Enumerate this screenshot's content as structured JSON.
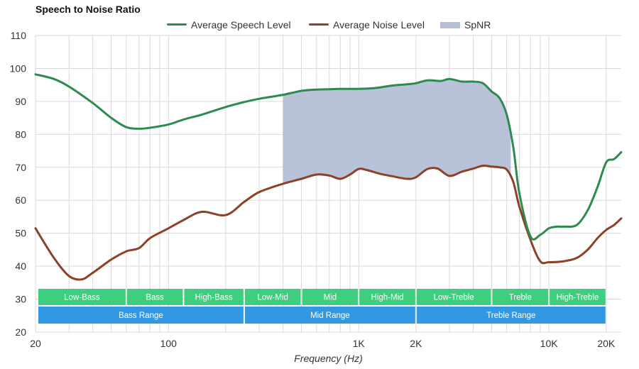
{
  "chart_data": {
    "type": "line",
    "title": "Speech to Noise Ratio",
    "xlabel": "Frequency (Hz)",
    "ylabel": "",
    "x_scale": "log",
    "xlim": [
      20,
      24000
    ],
    "ylim": [
      20,
      110
    ],
    "grid": true,
    "legend_position": "top-center",
    "x_ticks": [
      {
        "value": 20,
        "label": "20"
      },
      {
        "value": 100,
        "label": "100"
      },
      {
        "value": 1000,
        "label": "1K"
      },
      {
        "value": 2000,
        "label": "2K"
      },
      {
        "value": 10000,
        "label": "10K"
      },
      {
        "value": 20000,
        "label": "20K"
      }
    ],
    "y_ticks": [
      20,
      30,
      40,
      50,
      60,
      70,
      80,
      90,
      100,
      110
    ],
    "series": [
      {
        "name": "Average Speech Level",
        "color": "#2e8b4f",
        "x": [
          20,
          25,
          30,
          40,
          50,
          60,
          70,
          80,
          100,
          120,
          150,
          200,
          250,
          300,
          400,
          500,
          600,
          700,
          800,
          900,
          1000,
          1200,
          1500,
          1800,
          2000,
          2300,
          2700,
          3000,
          3500,
          4000,
          4500,
          5000,
          5500,
          6000,
          6500,
          7000,
          8000,
          9000,
          10000,
          11000,
          12000,
          14000,
          16000,
          18000,
          20000,
          22000,
          24000
        ],
        "values": [
          98.2,
          96.8,
          94.5,
          89.5,
          85.0,
          82.2,
          81.7,
          82.0,
          83.0,
          84.5,
          86.0,
          88.3,
          89.8,
          90.8,
          92.0,
          93.2,
          93.6,
          93.7,
          93.8,
          93.8,
          93.8,
          94.0,
          94.8,
          95.2,
          95.5,
          96.4,
          96.2,
          96.8,
          96.0,
          96.0,
          95.5,
          93.0,
          91.0,
          86.0,
          76.0,
          62.0,
          49.0,
          49.5,
          51.5,
          52.0,
          52.0,
          52.5,
          57.0,
          64.0,
          71.5,
          72.5,
          74.6
        ]
      },
      {
        "name": "Average Noise Level",
        "color": "#8b4226",
        "x": [
          20,
          25,
          30,
          35,
          40,
          50,
          60,
          70,
          80,
          100,
          120,
          150,
          200,
          250,
          300,
          400,
          500,
          600,
          700,
          800,
          900,
          1000,
          1100,
          1300,
          1500,
          1800,
          2000,
          2300,
          2600,
          3000,
          3500,
          4000,
          4500,
          5000,
          5500,
          6000,
          6500,
          7000,
          8000,
          9000,
          10000,
          12000,
          14000,
          16000,
          18000,
          20000,
          22000,
          24000
        ],
        "values": [
          51.5,
          42.5,
          37.0,
          36.0,
          38.0,
          42.0,
          44.5,
          45.5,
          48.5,
          51.5,
          54.0,
          56.5,
          55.5,
          59.5,
          62.5,
          65.0,
          66.5,
          67.8,
          67.5,
          66.5,
          67.8,
          69.5,
          69.2,
          68.0,
          67.3,
          66.5,
          67.0,
          69.5,
          69.6,
          67.4,
          68.7,
          69.6,
          70.5,
          70.2,
          70.0,
          69.3,
          65.5,
          58.0,
          48.0,
          41.5,
          41.2,
          41.5,
          42.5,
          45.0,
          48.5,
          51.0,
          52.5,
          54.5
        ]
      }
    ],
    "spnr": {
      "name": "SpNR",
      "color": "#b4bfd6",
      "x_range": [
        400,
        6300
      ]
    },
    "ranges": {
      "top_row": [
        {
          "label": "Low-Bass",
          "from": 20,
          "to": 60
        },
        {
          "label": "Bass",
          "from": 60,
          "to": 120
        },
        {
          "label": "High-Bass",
          "from": 120,
          "to": 250
        },
        {
          "label": "Low-Mid",
          "from": 250,
          "to": 500
        },
        {
          "label": "Mid",
          "from": 500,
          "to": 1000
        },
        {
          "label": "High-Mid",
          "from": 1000,
          "to": 2000
        },
        {
          "label": "Low-Treble",
          "from": 2000,
          "to": 5000
        },
        {
          "label": "Treble",
          "from": 5000,
          "to": 10000
        },
        {
          "label": "High-Treble",
          "from": 10000,
          "to": 20000
        }
      ],
      "bottom_row": [
        {
          "label": "Bass Range",
          "from": 20,
          "to": 250
        },
        {
          "label": "Mid Range",
          "from": 250,
          "to": 2000
        },
        {
          "label": "Treble Range",
          "from": 2000,
          "to": 20000
        }
      ],
      "top_color": "#3ecf7e",
      "bottom_color": "#3398e3"
    }
  }
}
